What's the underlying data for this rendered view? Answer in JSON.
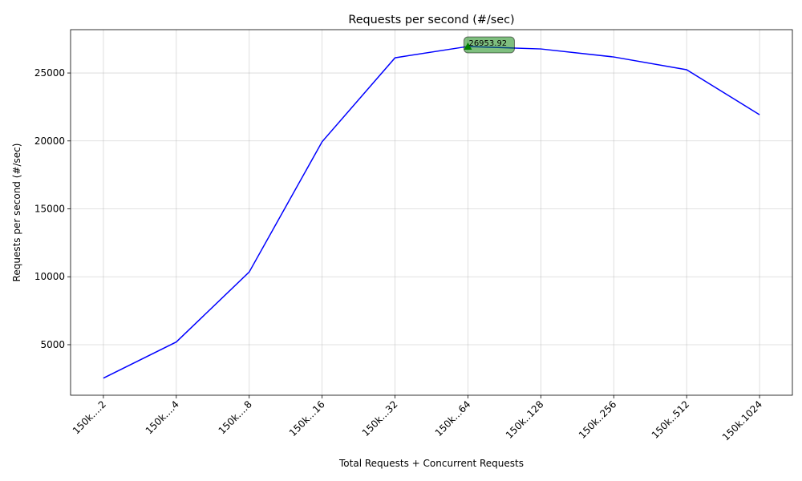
{
  "chart_data": {
    "type": "line",
    "title": "Requests per second (#/sec)",
    "x_label": "Total Requests + Concurrent Requests",
    "y_label": "Requests per second (#/sec)",
    "categories": [
      "150k....2",
      "150k....4",
      "150k....8",
      "150k...16",
      "150k...32",
      "150k...64",
      "150k..128",
      "150k..256",
      "150k..512",
      "150k.1024"
    ],
    "series": [
      {
        "name": "Requests per second (#/sec)",
        "color": "#0000ff",
        "values": [
          2540,
          5200,
          10350,
          19940,
          26120,
          26953.92,
          26770,
          26180,
          25240,
          21930
        ]
      }
    ],
    "ylim": [
      1280,
      28190
    ],
    "yticks": [
      5000,
      10000,
      15000,
      20000,
      25000
    ],
    "grid": true
  }
}
